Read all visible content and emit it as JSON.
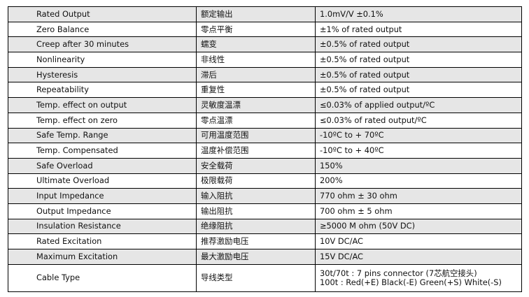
{
  "rows": [
    {
      "en": "Rated Output",
      "cn": "额定输出",
      "value": "1.0mV/V ±0.1%"
    },
    {
      "en": "Zero Balance",
      "cn": "零点平衡",
      "value": "±1% of rated output"
    },
    {
      "en": "Creep after 30 minutes",
      "cn": "蠕变",
      "value": "±0.5% of rated output"
    },
    {
      "en": "Nonlinearity",
      "cn": "非线性",
      "value": "±0.5% of rated output"
    },
    {
      "en": "Hysteresis",
      "cn": "滞后",
      "value": "±0.5% of rated output"
    },
    {
      "en": "Repeatability",
      "cn": "重复性",
      "value": "±0.5% of rated output"
    },
    {
      "en": "Temp. effect on output",
      "cn": "灵敏度温漂",
      "value": "≤0.03% of applied output/ºC"
    },
    {
      "en": "Temp. effect on zero",
      "cn": "零点温漂",
      "value": "≤0.03% of rated output/ºC"
    },
    {
      "en": "Safe Temp. Range",
      "cn": "可用温度范围",
      "value": "-10ºC to + 70ºC"
    },
    {
      "en": "Temp. Compensated",
      "cn": "温度补偿范围",
      "value": "-10ºC to + 40ºC"
    },
    {
      "en": "Safe Overload",
      "cn": "安全载荷",
      "value": "150%"
    },
    {
      "en": "Ultimate Overload",
      "cn": "极限载荷",
      "value": "200%"
    },
    {
      "en": "Input Impedance",
      "cn": "输入阻抗",
      "value": "770 ohm ± 30 ohm"
    },
    {
      "en": "Output Impedance",
      "cn": "输出阻抗",
      "value": "700 ohm ± 5 ohm"
    },
    {
      "en": "Insulation Resistance",
      "cn": "绝缘阻抗",
      "value": "≥5000 M ohm (50V DC)"
    },
    {
      "en": "Rated Excitation",
      "cn": "推荐激励电压",
      "value": "10V DC/AC"
    },
    {
      "en": "Maximum Excitation",
      "cn": "最大激励电压",
      "value": "15V DC/AC"
    }
  ],
  "cable": {
    "en": "Cable Type",
    "cn": "导线类型",
    "line1": "30t/70t : 7 pins connector (7芯航空接头)",
    "line2": "100t : Red(+E) Black(-E) Green(+S) White(-S)"
  }
}
